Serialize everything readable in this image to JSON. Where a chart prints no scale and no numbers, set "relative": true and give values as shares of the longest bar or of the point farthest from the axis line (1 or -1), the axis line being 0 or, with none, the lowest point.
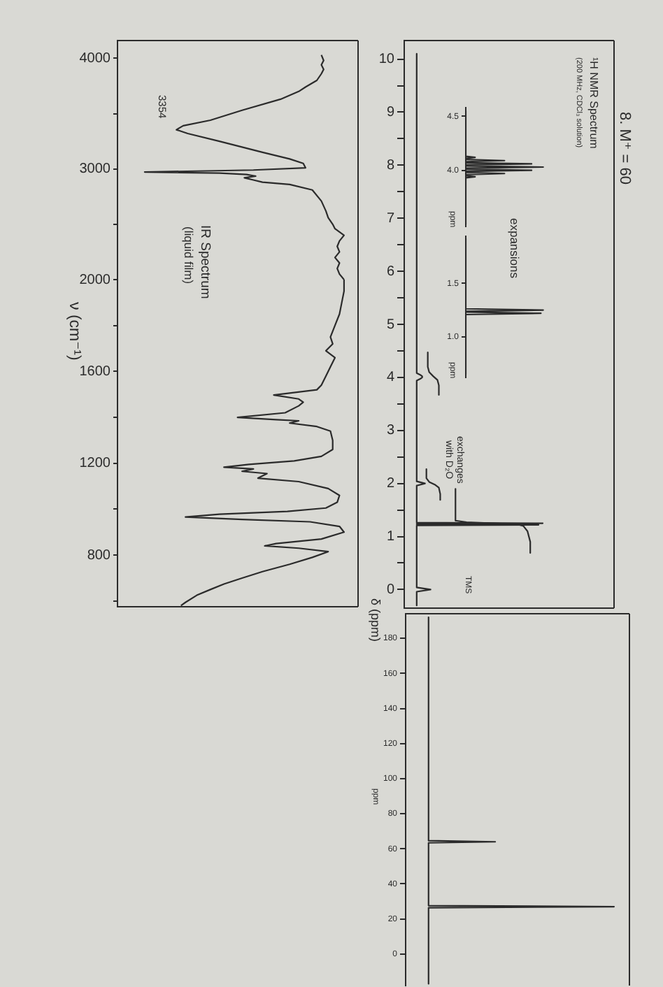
{
  "chart_data": [
    {
      "type": "line",
      "orientation": "horizontal",
      "ylabel": "δ (ppm)",
      "annotations": [
        "8. M⁺ = 60",
        "¹H NMR Spectrum",
        "(200 MHz, CDCl₃ solution)",
        "expansions",
        {
          "text": "exchanges with D₂O",
          "x": 0.15,
          "y": 2
        },
        "TMS"
      ],
      "relative": true,
      "ylim": [
        -0.35,
        10.35
      ],
      "yticks": [
        10,
        {
          "value": 9.5,
          "label": null
        },
        9,
        {
          "value": 8.5,
          "label": null
        },
        8,
        {
          "value": 7.5,
          "label": null
        },
        7,
        {
          "value": 6.5,
          "label": null
        },
        6,
        {
          "value": 5.5,
          "label": null
        },
        5,
        {
          "value": 4.5,
          "label": null
        },
        4,
        {
          "value": 3.5,
          "label": null
        },
        3,
        {
          "value": 2.5,
          "label": null
        },
        2,
        {
          "value": 1.5,
          "label": null
        },
        1,
        {
          "value": 0.5,
          "label": null
        },
        0
      ],
      "series": [
        {
          "color": "#2b2b2b",
          "x": [
            10.1,
            4.08,
            4.04,
            4.02,
            4.0,
            3.98,
            3.94,
            2.04,
            2.0,
            1.96,
            1.3,
            1.262,
            1.25,
            1.238,
            1.232,
            1.22,
            1.208,
            0.04,
            0,
            -0.04,
            -0.3
          ],
          "values": [
            0.09,
            0.09,
            0.12,
            0.13,
            0.13,
            0.12,
            0.09,
            0.09,
            0.15,
            0.09,
            0.09,
            0.09,
            1.0,
            0.09,
            0.09,
            0.97,
            0.09,
            0.09,
            0.19,
            0.09,
            0.09
          ]
        },
        {
          "color": "#2b2b2b",
          "x": [
            4.47,
            4.2,
            4.1,
            4.02,
            3.95,
            3.85,
            3.67
          ],
          "values": [
            0.17,
            0.17,
            0.18,
            0.21,
            0.24,
            0.25,
            0.25
          ]
        },
        {
          "color": "#2b2b2b",
          "x": [
            2.27,
            2.1,
            2.03,
            1.98,
            1.92,
            1.8,
            1.69
          ],
          "values": [
            0.16,
            0.16,
            0.18,
            0.22,
            0.25,
            0.26,
            0.26
          ]
        },
        {
          "color": "#2b2b2b",
          "x": [
            1.9,
            1.3,
            1.27,
            1.25,
            1.23,
            1.2,
            1.1,
            0.9,
            0.69
          ],
          "values": [
            0.37,
            0.37,
            0.45,
            0.64,
            0.82,
            0.86,
            0.89,
            0.91,
            0.91
          ]
        }
      ]
    },
    {
      "type": "line",
      "orientation": "horizontal",
      "ylabel": "ppm",
      "relative": true,
      "ylim": [
        3.48,
        4.58
      ],
      "yticks": [
        4.5,
        {
          "value": 4,
          "label": "4.0"
        }
      ],
      "color": "#2b2b2b",
      "x": [
        4.55,
        4.13,
        4.12,
        4.11,
        4.1,
        4.09,
        4.08,
        4.07,
        4.06,
        4.05,
        4.04,
        4.03,
        4.02,
        4.01,
        4.0,
        3.99,
        3.98,
        3.97,
        3.96,
        3.95,
        3.94,
        3.93,
        3.5
      ],
      "values": [
        0,
        0,
        0.12,
        0,
        0,
        0.5,
        0,
        0,
        0.85,
        0,
        0,
        1.0,
        0,
        0,
        0.85,
        0,
        0,
        0.5,
        0,
        0,
        0.12,
        0,
        0
      ]
    },
    {
      "type": "line",
      "orientation": "horizontal",
      "ylabel": "ppm",
      "relative": true,
      "ylim": [
        0.62,
        1.94
      ],
      "yticks": [
        1.5,
        {
          "value": 1,
          "label": "1.0"
        }
      ],
      "color": "#2b2b2b",
      "x": [
        1.92,
        1.262,
        1.25,
        1.238,
        1.232,
        1.22,
        1.208,
        0.65
      ],
      "values": [
        0,
        0,
        1.0,
        0,
        0,
        0.97,
        0,
        0
      ]
    },
    {
      "type": "line",
      "orientation": "horizontal",
      "title": "IR Spectrum",
      "subtitle": "(liquid film)",
      "annotations": [
        {
          "text": "3354",
          "x": 0.26,
          "y": 3354
        }
      ],
      "relative": true,
      "ylim": [
        2000,
        4160
      ],
      "yticks": [
        4000,
        {
          "value": 3500,
          "label": null
        },
        3000,
        {
          "value": 2500,
          "label": null
        }
      ],
      "color": "#2b2b2b",
      "x": [
        4030,
        3980,
        3940,
        3900,
        3860,
        3800,
        3740,
        3700,
        3630,
        3530,
        3440,
        3390,
        3354,
        3320,
        3250,
        3150,
        3090,
        3050,
        3010,
        2990,
        2972,
        2962,
        2950,
        2935,
        2920,
        2900,
        2880,
        2860,
        2810,
        2710,
        2620,
        2560,
        2500,
        2460,
        2400,
        2350,
        2300,
        2250,
        2200,
        2150,
        2100,
        2050,
        2000
      ],
      "values": [
        0.9,
        0.91,
        0.9,
        0.91,
        0.9,
        0.88,
        0.83,
        0.8,
        0.72,
        0.55,
        0.41,
        0.29,
        0.26,
        0.31,
        0.45,
        0.64,
        0.76,
        0.82,
        0.83,
        0.6,
        0.12,
        0.45,
        0.57,
        0.61,
        0.56,
        0.6,
        0.64,
        0.76,
        0.86,
        0.9,
        0.92,
        0.93,
        0.95,
        0.96,
        1.0,
        0.98,
        0.97,
        0.98,
        0.96,
        0.98,
        0.97,
        0.98,
        1.0
      ]
    },
    {
      "type": "line",
      "orientation": "horizontal",
      "ylabel": "ν (cm⁻¹)",
      "relative": true,
      "ylim": [
        575,
        2000
      ],
      "yticks": [
        2000,
        {
          "value": 1800,
          "label": null
        },
        1600,
        {
          "value": 1400,
          "label": null
        },
        1200,
        {
          "value": 1000,
          "label": null
        },
        800,
        {
          "value": 600,
          "label": null
        }
      ],
      "color": "#2b2b2b",
      "x": [
        2000,
        1950,
        1900,
        1850,
        1800,
        1750,
        1720,
        1690,
        1660,
        1620,
        1580,
        1540,
        1520,
        1497,
        1480,
        1466,
        1450,
        1420,
        1400,
        1390,
        1385,
        1375,
        1360,
        1340,
        1300,
        1260,
        1230,
        1210,
        1195,
        1183,
        1175,
        1165,
        1155,
        1135,
        1120,
        1090,
        1060,
        1030,
        1005,
        990,
        978,
        966,
        955,
        945,
        925,
        900,
        870,
        850,
        840,
        830,
        815,
        790,
        760,
        728,
        700,
        674,
        650,
        625,
        594,
        580
      ],
      "values": [
        1.0,
        1.0,
        0.99,
        0.98,
        0.96,
        0.94,
        0.95,
        0.92,
        0.96,
        0.94,
        0.92,
        0.9,
        0.88,
        0.69,
        0.8,
        0.82,
        0.8,
        0.74,
        0.53,
        0.7,
        0.8,
        0.76,
        0.88,
        0.94,
        0.95,
        0.95,
        0.9,
        0.78,
        0.58,
        0.47,
        0.6,
        0.55,
        0.66,
        0.62,
        0.8,
        0.93,
        0.98,
        0.97,
        0.92,
        0.75,
        0.45,
        0.3,
        0.55,
        0.85,
        0.98,
        1.0,
        0.9,
        0.7,
        0.65,
        0.8,
        0.93,
        0.86,
        0.76,
        0.64,
        0.55,
        0.47,
        0.41,
        0.35,
        0.3,
        0.28
      ]
    },
    {
      "type": "line",
      "orientation": "horizontal",
      "ylabel": "ppm",
      "relative": true,
      "ylim": [
        -18,
        194
      ],
      "yticks": [
        180,
        160,
        140,
        120,
        100,
        80,
        60,
        40,
        20,
        0
      ],
      "color": "#2b2b2b",
      "x": [
        192,
        64.6,
        64,
        63.4,
        27.6,
        27,
        26.4,
        -17
      ],
      "values": [
        0.11,
        0.11,
        0.43,
        0.11,
        0.11,
        1.0,
        0.11,
        0.11
      ]
    }
  ]
}
